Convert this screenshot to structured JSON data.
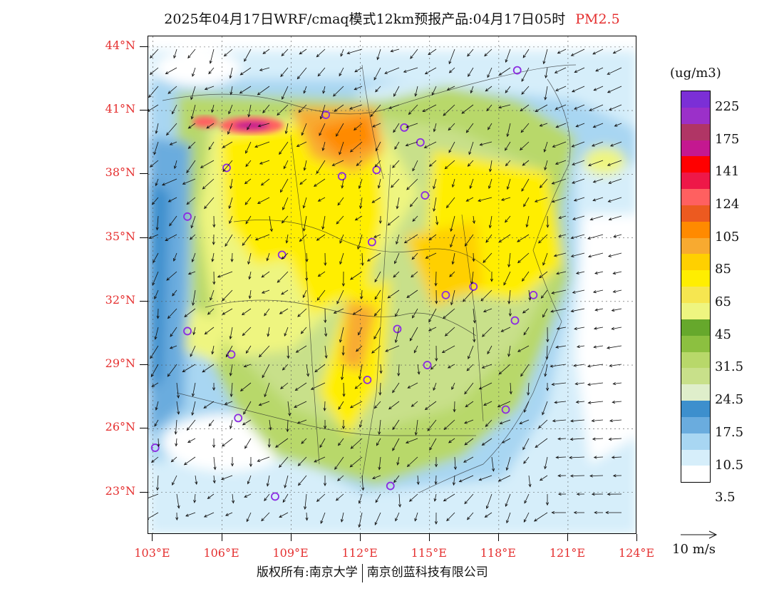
{
  "title": {
    "text": "2025年04月17日WRF/cmaq模式12km预报产品:04月17日05时",
    "pollutant": "PM2.5",
    "pollutant_color": "#e53030"
  },
  "map": {
    "lat_labels": [
      "44°N",
      "41°N",
      "38°N",
      "35°N",
      "32°N",
      "29°N",
      "26°N",
      "23°N"
    ],
    "lon_labels": [
      "103°E",
      "106°E",
      "109°E",
      "112°E",
      "115°E",
      "118°E",
      "121°E",
      "124°E"
    ],
    "lat_range": [
      21,
      44.5
    ],
    "lon_range": [
      102.8,
      124
    ],
    "lat_ticks": [
      44,
      41,
      38,
      35,
      32,
      29,
      26,
      23
    ],
    "lon_ticks": [
      103,
      106,
      109,
      112,
      115,
      118,
      121,
      124
    ],
    "city_markers": [
      {
        "lon": 118.8,
        "lat": 42.9
      },
      {
        "lon": 110.5,
        "lat": 40.8
      },
      {
        "lon": 113.9,
        "lat": 40.2
      },
      {
        "lon": 114.6,
        "lat": 39.5
      },
      {
        "lon": 106.2,
        "lat": 38.3
      },
      {
        "lon": 111.2,
        "lat": 37.9
      },
      {
        "lon": 112.7,
        "lat": 38.2
      },
      {
        "lon": 114.8,
        "lat": 37.0
      },
      {
        "lon": 104.5,
        "lat": 36.0
      },
      {
        "lon": 112.5,
        "lat": 34.8
      },
      {
        "lon": 108.6,
        "lat": 34.2
      },
      {
        "lon": 115.7,
        "lat": 32.3
      },
      {
        "lon": 116.9,
        "lat": 32.7
      },
      {
        "lon": 119.5,
        "lat": 32.3
      },
      {
        "lon": 118.7,
        "lat": 31.1
      },
      {
        "lon": 104.5,
        "lat": 30.6
      },
      {
        "lon": 113.6,
        "lat": 30.7
      },
      {
        "lon": 106.4,
        "lat": 29.5
      },
      {
        "lon": 114.9,
        "lat": 29.0
      },
      {
        "lon": 112.3,
        "lat": 28.3
      },
      {
        "lon": 118.3,
        "lat": 26.9
      },
      {
        "lon": 106.7,
        "lat": 26.5
      },
      {
        "lon": 103.1,
        "lat": 25.1
      },
      {
        "lon": 108.3,
        "lat": 22.8
      },
      {
        "lon": 113.3,
        "lat": 23.3
      }
    ],
    "marker_color": "#8b2be2"
  },
  "colorbar": {
    "unit": "(ug/m3)",
    "colors": [
      "#7b2fd6",
      "#9b30c9",
      "#b03565",
      "#c41890",
      "#ff0000",
      "#ee1848",
      "#ff6060",
      "#ec5a20",
      "#ff8a00",
      "#f8aa30",
      "#ffd000",
      "#ffee00",
      "#f6e650",
      "#eef580",
      "#66a82c",
      "#8cc040",
      "#b8d86a",
      "#c8e08a",
      "#dfeecb",
      "#3d8fcd",
      "#6aacde",
      "#a8d6f2",
      "#d6eefa",
      "#ffffff"
    ],
    "labels": [
      "225",
      "175",
      "141",
      "124",
      "105",
      "85",
      "65",
      "45",
      "31.5",
      "24.5",
      "17.5",
      "10.5",
      "3.5"
    ]
  },
  "wind_legend": {
    "label": "10 m/s"
  },
  "footer": {
    "left": "版权所有:南京大学",
    "right": "南京创蓝科技有限公司"
  }
}
